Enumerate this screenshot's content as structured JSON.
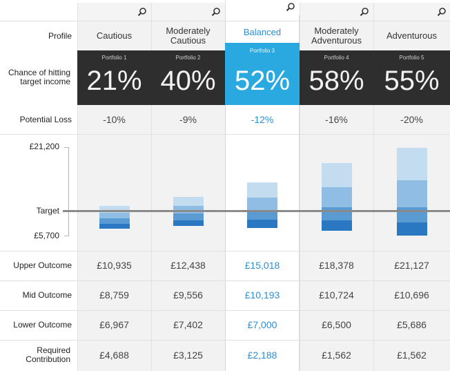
{
  "row_labels": {
    "profile": "Profile",
    "chance": "Chance of hitting target income",
    "potential_loss": "Potential Loss",
    "upper": "Upper Outcome",
    "mid": "Mid Outcome",
    "lower": "Lower Outcome",
    "required": "Required Contribution"
  },
  "chart_axis": {
    "top_label": "£21,200",
    "target_label": "Target",
    "bottom_label": "£5,700"
  },
  "colors": {
    "accent": "#2aa9e0",
    "accent_text": "#2a8fd6",
    "dark_header": "#2e2e2e",
    "target_line": "#8a8a8a"
  },
  "portfolios": [
    {
      "profile": "Cautious",
      "portfolio_label": "Portfolio 1",
      "chance": "21%",
      "potential_loss": "-10%",
      "upper": "£10,935",
      "mid": "£8,759",
      "lower": "£6,967",
      "required": "£4,688",
      "selected": false
    },
    {
      "profile": "Moderately Cautious",
      "portfolio_label": "Portfolio 2",
      "chance": "40%",
      "potential_loss": "-9%",
      "upper": "£12,438",
      "mid": "£9,556",
      "lower": "£7,402",
      "required": "£3,125",
      "selected": false
    },
    {
      "profile": "Balanced",
      "portfolio_label": "Portfolio 3",
      "chance": "52%",
      "potential_loss": "-12%",
      "upper": "£15,018",
      "mid": "£10,193",
      "lower": "£7,000",
      "required": "£2,188",
      "selected": true
    },
    {
      "profile": "Moderately Adventurous",
      "portfolio_label": "Portfolio 4",
      "chance": "58%",
      "potential_loss": "-16%",
      "upper": "£18,378",
      "mid": "£10,724",
      "lower": "£6,500",
      "required": "£1,562",
      "selected": false
    },
    {
      "profile": "Adventurous",
      "portfolio_label": "Portfolio 5",
      "chance": "55%",
      "potential_loss": "-20%",
      "upper": "£21,127",
      "mid": "£10,696",
      "lower": "£5,686",
      "required": "£1,562",
      "selected": false
    }
  ]
}
